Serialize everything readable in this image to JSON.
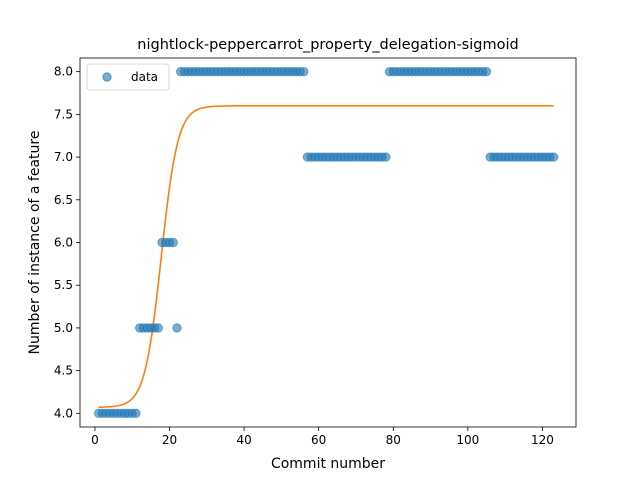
{
  "chart_data": {
    "type": "scatter",
    "title": "nightlock-peppercarrot_property_delegation-sigmoid",
    "xlabel": "Commit number",
    "ylabel": "Number of instance of a feature",
    "xlim": [
      -4,
      129
    ],
    "ylim": [
      3.84,
      8.16
    ],
    "xticks": [
      0,
      20,
      40,
      60,
      80,
      100,
      120
    ],
    "yticks": [
      4.0,
      4.5,
      5.0,
      5.5,
      6.0,
      6.5,
      7.0,
      7.5,
      8.0
    ],
    "xtick_labels": [
      "0",
      "20",
      "40",
      "60",
      "80",
      "100",
      "120"
    ],
    "ytick_labels": [
      "4.0",
      "4.5",
      "5.0",
      "5.5",
      "6.0",
      "6.5",
      "7.0",
      "7.5",
      "8.0"
    ],
    "legend": {
      "position": "top-left",
      "entries": [
        "data"
      ]
    },
    "colors": {
      "data": "#1f77b4",
      "fit": "#ff7f0e"
    },
    "series": [
      {
        "name": "data",
        "kind": "scatter",
        "points": [
          [
            1,
            4
          ],
          [
            2,
            4
          ],
          [
            3,
            4
          ],
          [
            4,
            4
          ],
          [
            5,
            4
          ],
          [
            6,
            4
          ],
          [
            7,
            4
          ],
          [
            8,
            4
          ],
          [
            9,
            4
          ],
          [
            10,
            4
          ],
          [
            11,
            4
          ],
          [
            12,
            5
          ],
          [
            13,
            5
          ],
          [
            14,
            5
          ],
          [
            15,
            5
          ],
          [
            16,
            5
          ],
          [
            17,
            5
          ],
          [
            18,
            6
          ],
          [
            19,
            6
          ],
          [
            20,
            6
          ],
          [
            21,
            6
          ],
          [
            22,
            5
          ],
          [
            23,
            8
          ],
          [
            24,
            8
          ],
          [
            25,
            8
          ],
          [
            26,
            8
          ],
          [
            27,
            8
          ],
          [
            28,
            8
          ],
          [
            29,
            8
          ],
          [
            30,
            8
          ],
          [
            31,
            8
          ],
          [
            32,
            8
          ],
          [
            33,
            8
          ],
          [
            34,
            8
          ],
          [
            35,
            8
          ],
          [
            36,
            8
          ],
          [
            37,
            8
          ],
          [
            38,
            8
          ],
          [
            39,
            8
          ],
          [
            40,
            8
          ],
          [
            41,
            8
          ],
          [
            42,
            8
          ],
          [
            43,
            8
          ],
          [
            44,
            8
          ],
          [
            45,
            8
          ],
          [
            46,
            8
          ],
          [
            47,
            8
          ],
          [
            48,
            8
          ],
          [
            49,
            8
          ],
          [
            50,
            8
          ],
          [
            51,
            8
          ],
          [
            52,
            8
          ],
          [
            53,
            8
          ],
          [
            54,
            8
          ],
          [
            55,
            8
          ],
          [
            56,
            8
          ],
          [
            57,
            7
          ],
          [
            58,
            7
          ],
          [
            59,
            7
          ],
          [
            60,
            7
          ],
          [
            61,
            7
          ],
          [
            62,
            7
          ],
          [
            63,
            7
          ],
          [
            64,
            7
          ],
          [
            65,
            7
          ],
          [
            66,
            7
          ],
          [
            67,
            7
          ],
          [
            68,
            7
          ],
          [
            69,
            7
          ],
          [
            70,
            7
          ],
          [
            71,
            7
          ],
          [
            72,
            7
          ],
          [
            73,
            7
          ],
          [
            74,
            7
          ],
          [
            75,
            7
          ],
          [
            76,
            7
          ],
          [
            77,
            7
          ],
          [
            78,
            7
          ],
          [
            79,
            8
          ],
          [
            80,
            8
          ],
          [
            81,
            8
          ],
          [
            82,
            8
          ],
          [
            83,
            8
          ],
          [
            84,
            8
          ],
          [
            85,
            8
          ],
          [
            86,
            8
          ],
          [
            87,
            8
          ],
          [
            88,
            8
          ],
          [
            89,
            8
          ],
          [
            90,
            8
          ],
          [
            91,
            8
          ],
          [
            92,
            8
          ],
          [
            93,
            8
          ],
          [
            94,
            8
          ],
          [
            95,
            8
          ],
          [
            96,
            8
          ],
          [
            97,
            8
          ],
          [
            98,
            8
          ],
          [
            99,
            8
          ],
          [
            100,
            8
          ],
          [
            101,
            8
          ],
          [
            102,
            8
          ],
          [
            103,
            8
          ],
          [
            104,
            8
          ],
          [
            105,
            8
          ],
          [
            106,
            7
          ],
          [
            107,
            7
          ],
          [
            108,
            7
          ],
          [
            109,
            7
          ],
          [
            110,
            7
          ],
          [
            111,
            7
          ],
          [
            112,
            7
          ],
          [
            113,
            7
          ],
          [
            114,
            7
          ],
          [
            115,
            7
          ],
          [
            116,
            7
          ],
          [
            117,
            7
          ],
          [
            118,
            7
          ],
          [
            119,
            7
          ],
          [
            120,
            7
          ],
          [
            121,
            7
          ],
          [
            122,
            7
          ],
          [
            123,
            7
          ]
        ]
      },
      {
        "kind": "sigmoid-fit",
        "x_range": [
          1,
          123
        ],
        "lower": 4.07,
        "upper": 7.6,
        "midpoint": 17.8,
        "rate": 0.45
      }
    ]
  }
}
